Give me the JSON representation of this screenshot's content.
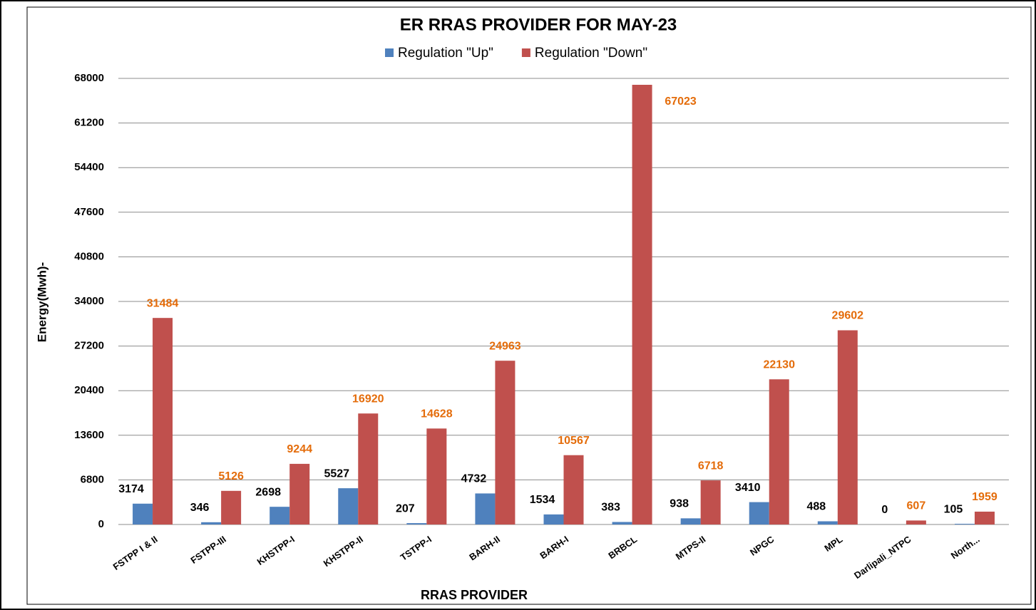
{
  "chart_data": {
    "type": "bar",
    "title": "ER RRAS PROVIDER FOR MAY-23",
    "x_label": "RRAS PROVIDER",
    "y_label": "Energy(Mwh)-",
    "categories": [
      "FSTPP I & II",
      "FSTPP-III",
      "KHSTPP-I",
      "KHSTPP-II",
      "TSTPP-I",
      "BARH-II",
      "BARH-I",
      "BRBCL",
      "MTPS-II",
      "NPGC",
      "MPL",
      "Darlipali_NTPC",
      "North..."
    ],
    "series": [
      {
        "name": "Regulation \"Up\"",
        "color": "#4f81bd",
        "label_color": "#000000",
        "values": [
          3174,
          346,
          2698,
          5527,
          207,
          4732,
          1534,
          383,
          938,
          3410,
          488,
          0,
          105
        ]
      },
      {
        "name": "Regulation \"Down\"",
        "color": "#c0504d",
        "label_color": "#e46c0a",
        "values": [
          31484,
          5126,
          9244,
          16920,
          14628,
          24963,
          10567,
          67023,
          6718,
          22130,
          29602,
          607,
          1959
        ]
      }
    ],
    "ylim": [
      0,
      68000
    ],
    "yticks": [
      0,
      6800,
      13600,
      20400,
      27200,
      34000,
      40800,
      47600,
      54400,
      61200,
      68000
    ],
    "grid": true,
    "legend": "top"
  }
}
